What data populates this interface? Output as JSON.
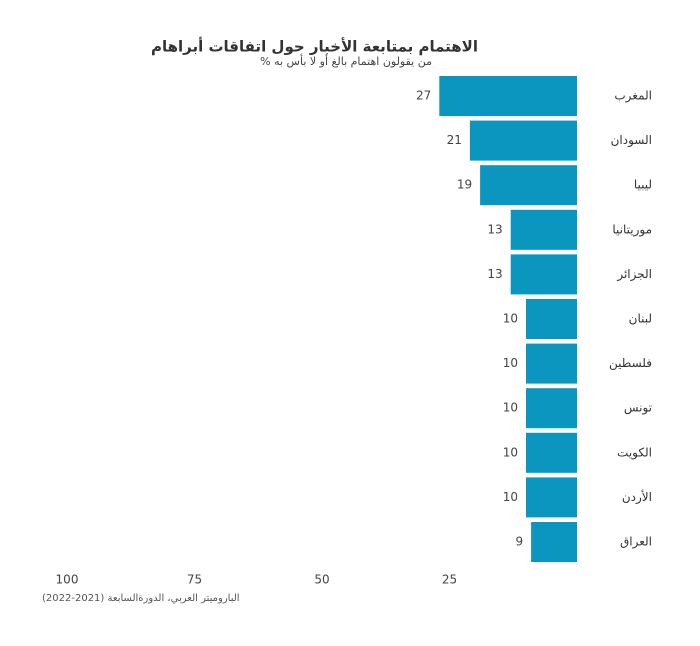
{
  "chart_data": {
    "type": "bar",
    "orientation": "horizontal",
    "title": "الاهتمام بمتابعة الأخبار حول اتفاقات أبراهام",
    "subtitle": "% من يقولون اهتمام بالغ أو لا بأس به",
    "source": "الباروميتر العربي، الدورةالسابعة (2021-2022)",
    "categories": [
      "المغرب",
      "السودان",
      "ليبيا",
      "موريتانيا",
      "الجزائر",
      "لبنان",
      "فلسطين",
      "تونس",
      "الكويت",
      "الأردن",
      "العراق"
    ],
    "values": [
      27,
      21,
      19,
      13,
      13,
      10,
      10,
      10,
      10,
      10,
      9
    ],
    "color": "#0a96bf",
    "xlim": [
      0,
      100
    ],
    "xticks": [
      25,
      50,
      75,
      100
    ],
    "grid": false
  }
}
